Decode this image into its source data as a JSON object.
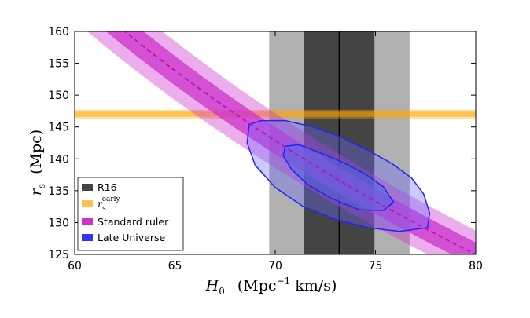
{
  "chart_data": {
    "type": "contour",
    "title": "",
    "xlabel": {
      "symbol": "H",
      "subscript": "0",
      "units_prefix": "(Mpc",
      "units_sup": "−1",
      "units_suffix": " km/s)"
    },
    "ylabel": {
      "symbol": "r",
      "subscript": "s",
      "units": "(Mpc)"
    },
    "xlim": [
      60,
      80
    ],
    "ylim": [
      125,
      160
    ],
    "xticks": [
      "60",
      "65",
      "70",
      "75",
      "80"
    ],
    "yticks": [
      "125",
      "130",
      "135",
      "140",
      "145",
      "150",
      "155",
      "160"
    ],
    "r16": {
      "name": "R16",
      "center": 73.2,
      "sigma1": [
        71.45,
        74.95
      ],
      "sigma2": [
        69.7,
        76.7
      ],
      "color": "#444444"
    },
    "rs_early": {
      "name_base": "r",
      "name_sub": "s",
      "name_sup": "early",
      "center": 147.0,
      "sigma1": [
        146.6,
        147.4
      ],
      "sigma2": [
        146.3,
        147.7
      ],
      "color": "#ffa500"
    },
    "standard_ruler": {
      "name": "Standard ruler",
      "constant": 10000,
      "frac1": 0.015,
      "frac2": 0.03,
      "color": "#cc33cc"
    },
    "late_universe": {
      "name": "Late Universe",
      "color": "#3333ff",
      "contour_1sigma": [
        [
          70.5,
          142.0
        ],
        [
          71.2,
          142.2
        ],
        [
          72.2,
          141.0
        ],
        [
          73.4,
          139.4
        ],
        [
          74.5,
          137.6
        ],
        [
          75.4,
          135.6
        ],
        [
          75.9,
          133.2
        ],
        [
          75.4,
          131.9
        ],
        [
          74.2,
          132.0
        ],
        [
          72.8,
          133.8
        ],
        [
          71.6,
          136.0
        ],
        [
          70.8,
          138.4
        ],
        [
          70.4,
          140.5
        ]
      ],
      "contour_2sigma": [
        [
          68.7,
          145.4
        ],
        [
          69.3,
          146.0
        ],
        [
          70.5,
          146.0
        ],
        [
          71.9,
          145.0
        ],
        [
          73.3,
          143.4
        ],
        [
          74.6,
          141.4
        ],
        [
          75.8,
          139.3
        ],
        [
          76.8,
          137.0
        ],
        [
          77.4,
          134.5
        ],
        [
          77.7,
          131.5
        ],
        [
          77.6,
          129.2
        ],
        [
          76.2,
          128.6
        ],
        [
          74.6,
          129.2
        ],
        [
          73.0,
          130.5
        ],
        [
          71.4,
          132.5
        ],
        [
          70.0,
          135.5
        ],
        [
          69.0,
          139.0
        ],
        [
          68.6,
          142.5
        ]
      ]
    },
    "legend": [
      "R16",
      "rs_early",
      "Standard ruler",
      "Late Universe"
    ],
    "legend_position": "lower-left"
  }
}
